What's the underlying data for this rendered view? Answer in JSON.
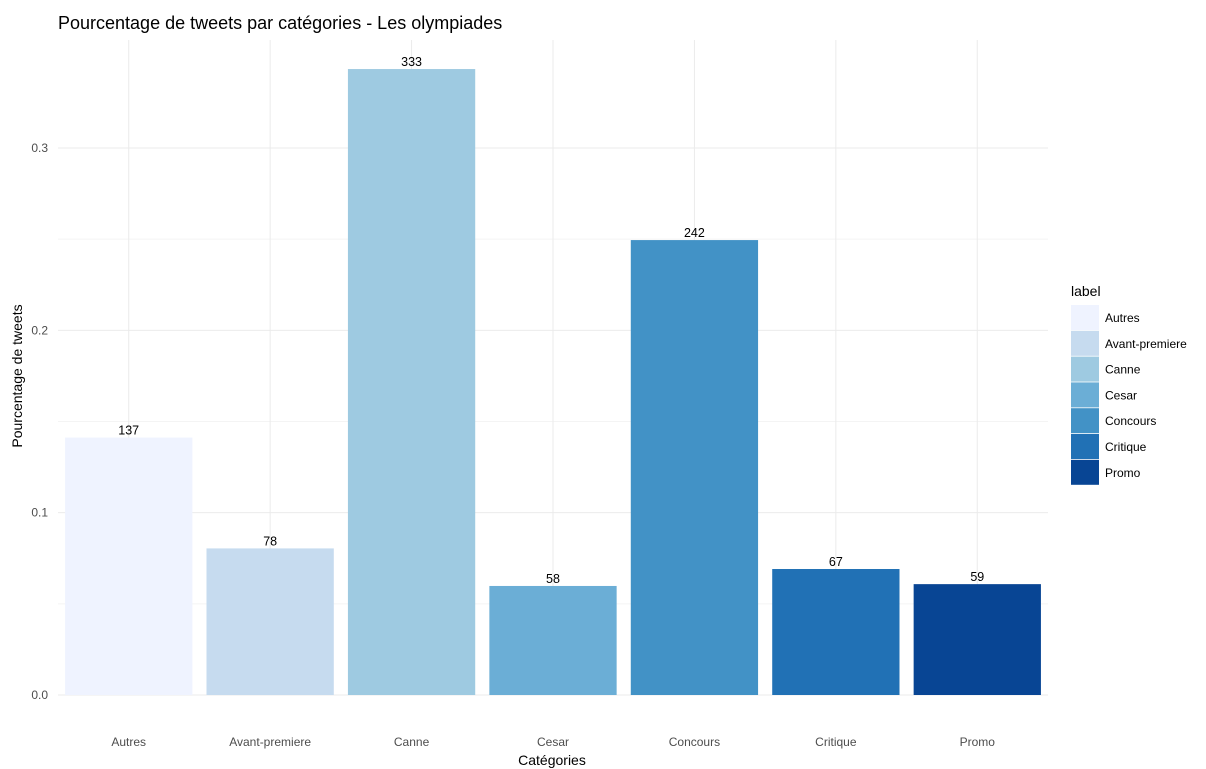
{
  "chart_data": {
    "type": "bar",
    "title": "Pourcentage de tweets par catégories - Les olympiades",
    "xlabel": "Catégories",
    "ylabel": "Pourcentage de tweets",
    "categories": [
      "Autres",
      "Avant-premiere",
      "Canne",
      "Cesar",
      "Concours",
      "Critique",
      "Promo"
    ],
    "values": [
      0.1412,
      0.0804,
      0.3433,
      0.0598,
      0.2495,
      0.0691,
      0.0608
    ],
    "counts": [
      "137",
      "78",
      "333",
      "58",
      "242",
      "67",
      "59"
    ],
    "colors": [
      "#EFF3FF",
      "#C6DBEF",
      "#9ECAE1",
      "#6BAED6",
      "#4292C6",
      "#2171B5",
      "#084594"
    ],
    "ylim": [
      0,
      0.35
    ],
    "yticks": [
      0.0,
      0.1,
      0.2,
      0.3
    ],
    "ytick_labels": [
      "0.0",
      "0.1",
      "0.2",
      "0.3"
    ],
    "grid": true,
    "legend": {
      "title": "label",
      "position": "right",
      "entries": [
        "Autres",
        "Avant-premiere",
        "Canne",
        "Cesar",
        "Concours",
        "Critique",
        "Promo"
      ]
    }
  }
}
